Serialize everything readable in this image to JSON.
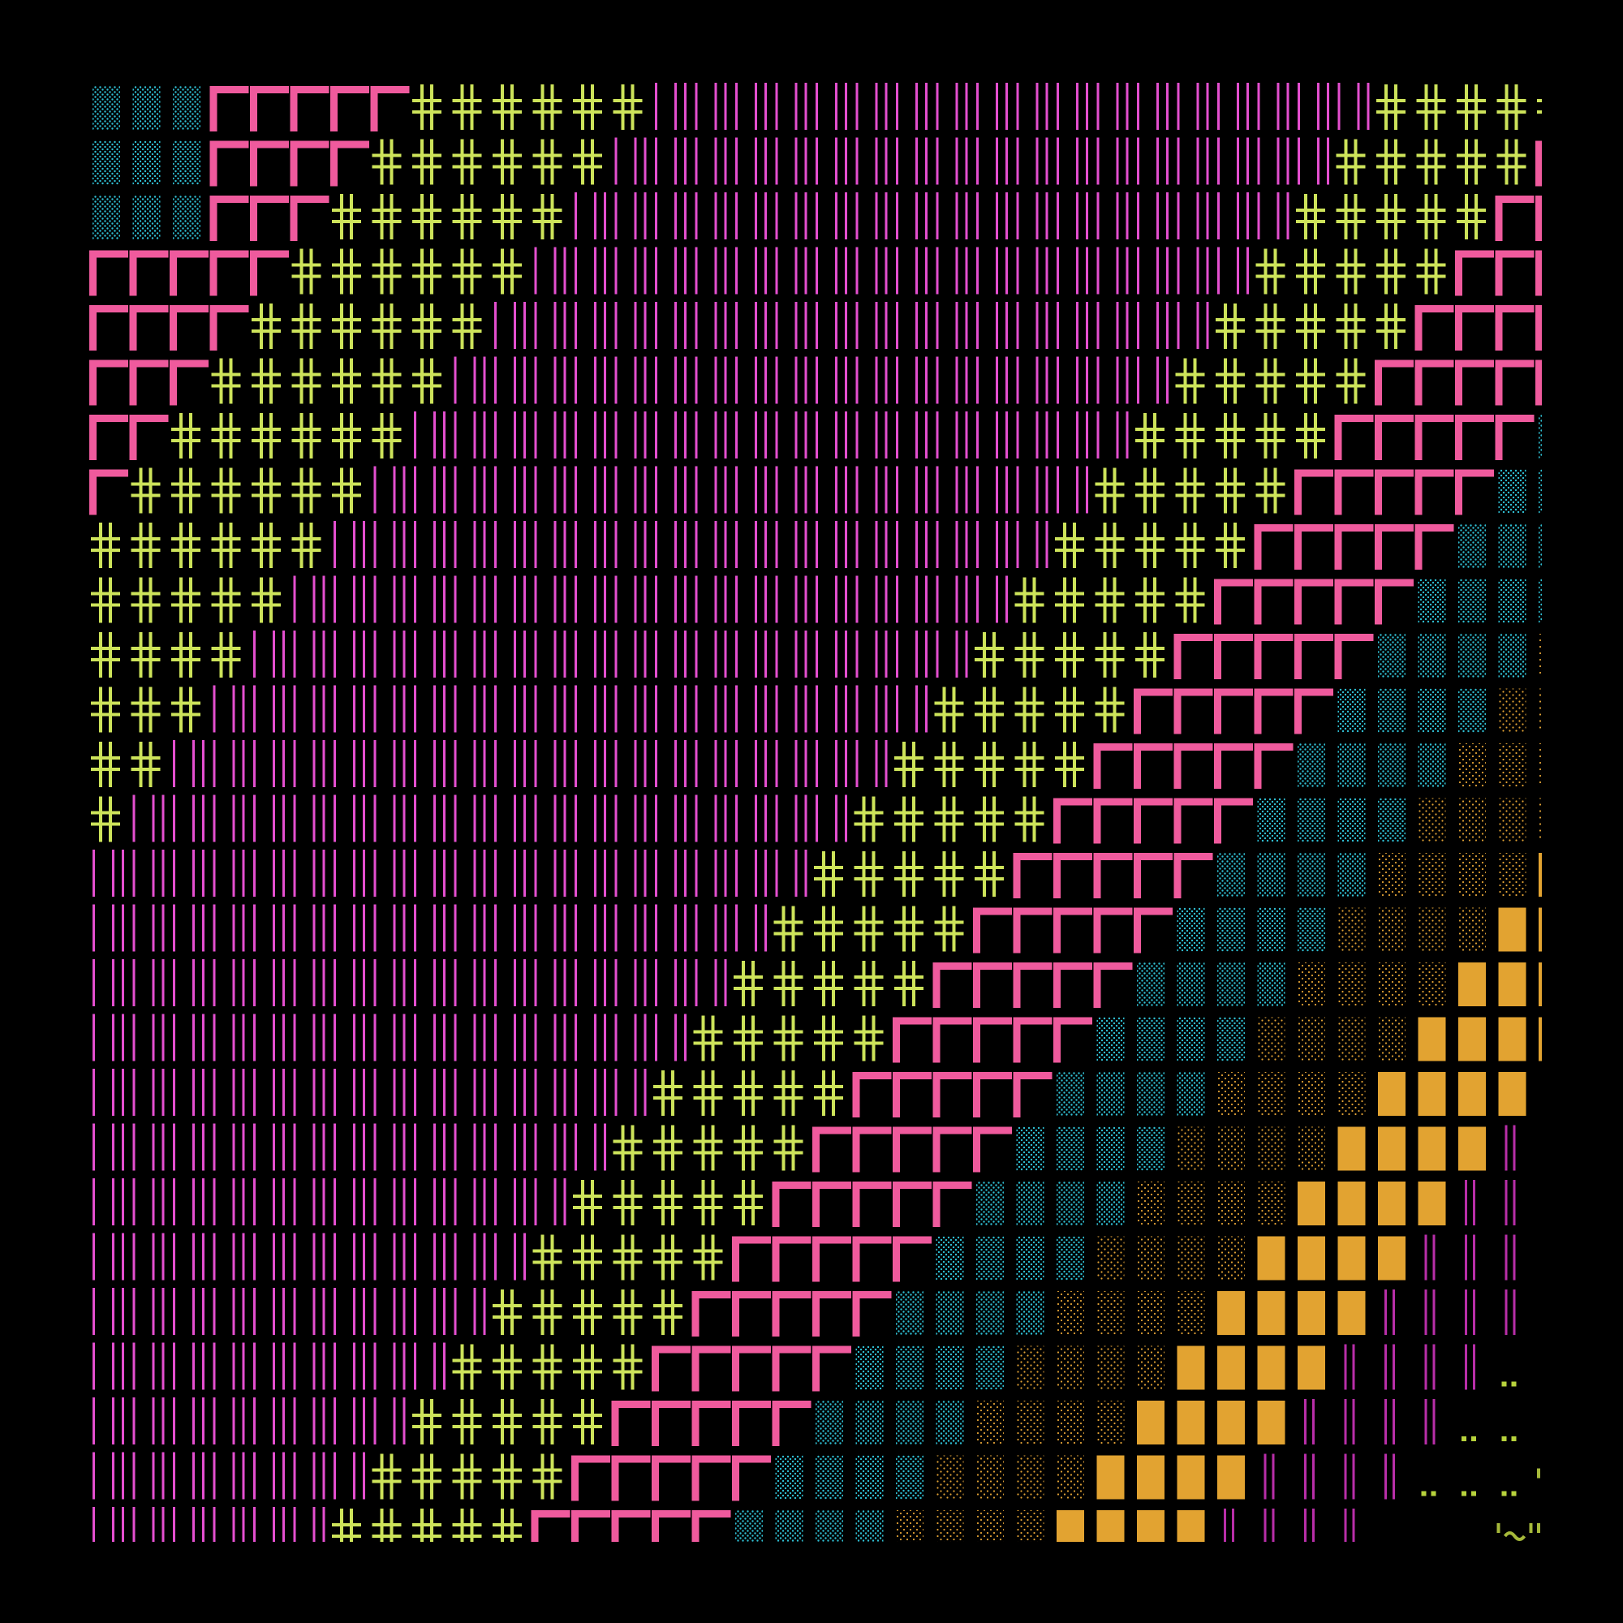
{
  "artwork": {
    "type": "ascii-diagonal-bands",
    "background": "#000000",
    "frame_margin_ratio": 0.0525,
    "bands": [
      {
        "name": "magenta-bars",
        "glyph": "bars",
        "color": "#e44fcf"
      },
      {
        "name": "lime-crosses",
        "glyph": "cross",
        "color": "#cde35a"
      },
      {
        "name": "pink-arches",
        "glyph": "arch",
        "color": "#ef5a9d"
      },
      {
        "name": "cyan-dots",
        "glyph": "dense-dots",
        "color": "#2fbfd3"
      },
      {
        "name": "amber-speckle",
        "glyph": "speckle",
        "color": "#e0a134"
      },
      {
        "name": "amber-blocks",
        "glyph": "block",
        "color": "#e2a331"
      },
      {
        "name": "purple-bars",
        "glyph": "double-bars",
        "color": "#b82ea8"
      },
      {
        "name": "lime-dots",
        "glyph": "dot-pair",
        "color": "#b7d23c"
      },
      {
        "name": "olive-waves",
        "glyph": "wave",
        "color": "#a6b93a"
      }
    ]
  }
}
